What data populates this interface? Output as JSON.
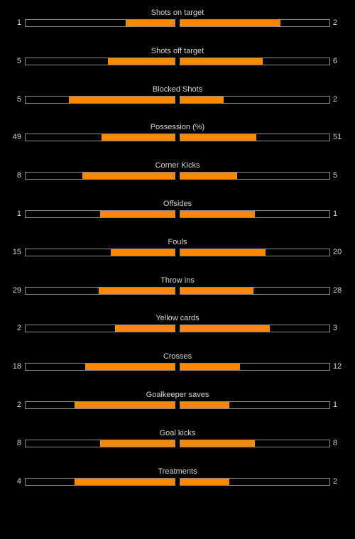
{
  "colors": {
    "background": "#000000",
    "fill": "#ff8800",
    "border": "#8a8a8a",
    "text": "#d6d6d6"
  },
  "stats": [
    {
      "label": "Shots on target",
      "home": "1",
      "away": "2",
      "home_fill": 0.33,
      "away_fill": 0.67
    },
    {
      "label": "Shots off target",
      "home": "5",
      "away": "6",
      "home_fill": 0.45,
      "away_fill": 0.55
    },
    {
      "label": "Blocked Shots",
      "home": "5",
      "away": "2",
      "home_fill": 0.71,
      "away_fill": 0.29
    },
    {
      "label": "Possession (%)",
      "home": "49",
      "away": "51",
      "home_fill": 0.49,
      "away_fill": 0.51
    },
    {
      "label": "Corner Kicks",
      "home": "8",
      "away": "5",
      "home_fill": 0.62,
      "away_fill": 0.38
    },
    {
      "label": "Offsides",
      "home": "1",
      "away": "1",
      "home_fill": 0.5,
      "away_fill": 0.5
    },
    {
      "label": "Fouls",
      "home": "15",
      "away": "20",
      "home_fill": 0.43,
      "away_fill": 0.57
    },
    {
      "label": "Throw ins",
      "home": "29",
      "away": "28",
      "home_fill": 0.51,
      "away_fill": 0.49
    },
    {
      "label": "Yellow cards",
      "home": "2",
      "away": "3",
      "home_fill": 0.4,
      "away_fill": 0.6
    },
    {
      "label": "Crosses",
      "home": "18",
      "away": "12",
      "home_fill": 0.6,
      "away_fill": 0.4
    },
    {
      "label": "Goalkeeper saves",
      "home": "2",
      "away": "1",
      "home_fill": 0.67,
      "away_fill": 0.33
    },
    {
      "label": "Goal kicks",
      "home": "8",
      "away": "8",
      "home_fill": 0.5,
      "away_fill": 0.5
    },
    {
      "label": "Treatments",
      "home": "4",
      "away": "2",
      "home_fill": 0.67,
      "away_fill": 0.33
    }
  ]
}
